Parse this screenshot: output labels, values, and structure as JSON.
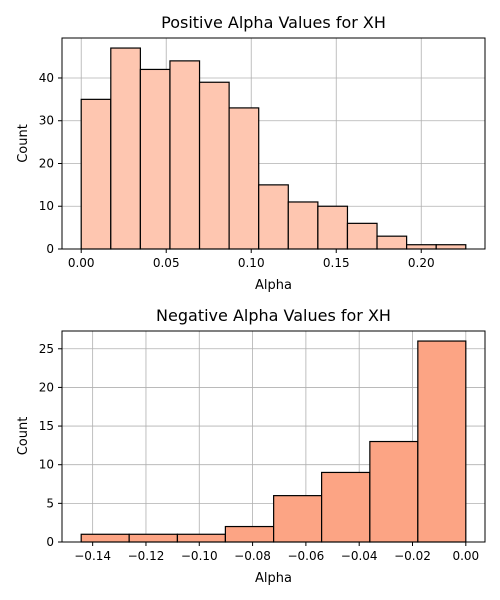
{
  "chart_data": [
    {
      "type": "bar",
      "title": "Positive Alpha Values for XH",
      "xlabel": "Alpha",
      "ylabel": "Count",
      "bin_edges": [
        0.0,
        0.0174,
        0.0348,
        0.0522,
        0.0696,
        0.087,
        0.1044,
        0.1218,
        0.1392,
        0.1566,
        0.174,
        0.1914,
        0.2088,
        0.2262
      ],
      "counts": [
        35,
        47,
        42,
        44,
        39,
        33,
        15,
        11,
        10,
        6,
        3,
        1,
        1
      ],
      "xlim": [
        -0.0113,
        0.2375
      ],
      "ylim": [
        0,
        49.35
      ],
      "xticks": [
        0.0,
        0.05,
        0.1,
        0.15,
        0.2
      ],
      "xtick_labels": [
        "0.00",
        "0.05",
        "0.10",
        "0.15",
        "0.20"
      ],
      "yticks": [
        0,
        10,
        20,
        30,
        40
      ],
      "ytick_labels": [
        "0",
        "10",
        "20",
        "30",
        "40"
      ],
      "grid": true,
      "color": "#fec6b0"
    },
    {
      "type": "bar",
      "title": "Negative Alpha Values for XH",
      "xlabel": "Alpha",
      "ylabel": "Count",
      "bin_edges": [
        -0.1443,
        -0.1263,
        -0.1082,
        -0.0902,
        -0.0721,
        -0.0541,
        -0.036,
        -0.018,
        0.0
      ],
      "counts": [
        1,
        1,
        1,
        2,
        6,
        9,
        13,
        26
      ],
      "xlim": [
        -0.1515,
        0.0072
      ],
      "ylim": [
        0,
        27.3
      ],
      "xticks": [
        -0.14,
        -0.12,
        -0.1,
        -0.08,
        -0.06,
        -0.04,
        -0.02,
        0.0
      ],
      "xtick_labels": [
        "−0.14",
        "−0.12",
        "−0.10",
        "−0.08",
        "−0.06",
        "−0.04",
        "−0.02",
        "0.00"
      ],
      "yticks": [
        0,
        5,
        10,
        15,
        20,
        25
      ],
      "ytick_labels": [
        "0",
        "5",
        "10",
        "15",
        "20",
        "25"
      ],
      "grid": true,
      "color": "#fca484"
    }
  ]
}
